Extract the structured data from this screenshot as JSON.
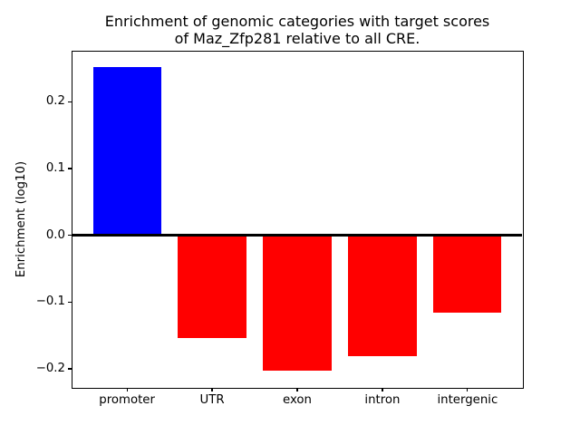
{
  "chart_data": {
    "type": "bar",
    "title": "Enrichment of genomic categories with target scores\nof Maz_Zfp281 relative to all CRE.",
    "title_lines": [
      "Enrichment of genomic categories with target scores",
      "of Maz_Zfp281 relative to all CRE."
    ],
    "xlabel": "",
    "ylabel": "Enrichment (log10)",
    "categories": [
      "promoter",
      "UTR",
      "exon",
      "intron",
      "intergenic"
    ],
    "values": [
      0.252,
      -0.154,
      -0.202,
      -0.181,
      -0.116
    ],
    "bar_colors": [
      "#0000ff",
      "#ff0000",
      "#ff0000",
      "#ff0000",
      "#ff0000"
    ],
    "positive_color": "#0000ff",
    "negative_color": "#ff0000",
    "ylim": [
      -0.227,
      0.275
    ],
    "xlim": [
      -0.64,
      4.64
    ],
    "bar_width": 0.8,
    "yticks": {
      "values": [
        0.2,
        0.1,
        0.0,
        -0.1,
        -0.2
      ],
      "labels": [
        "0.2",
        "0.1",
        "0.0",
        "−0.1",
        "−0.2"
      ]
    },
    "zero_line": {
      "show": true,
      "color": "#000000",
      "thickness_px": 3
    },
    "grid": false,
    "legend": "none",
    "background": "#ffffff",
    "axis_color": "#000000"
  }
}
